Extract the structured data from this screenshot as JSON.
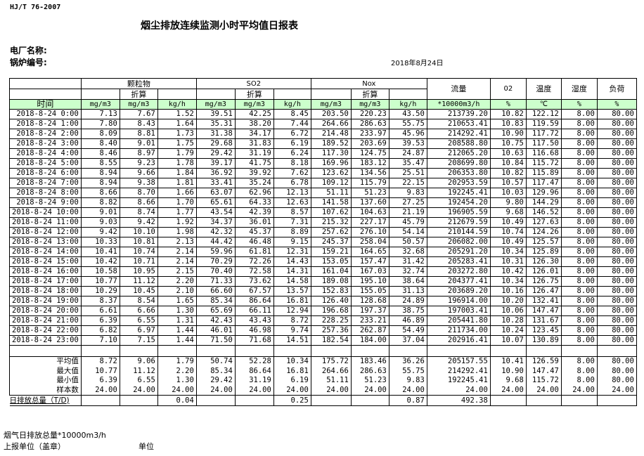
{
  "header": {
    "standard": "HJ/T  76-2007",
    "title": "烟尘排放连续监测小时平均值日报表",
    "plant_label": "电厂名称:",
    "boiler_label": "锅炉编号:",
    "date": "2018年8月24日"
  },
  "table": {
    "groups": {
      "pm": "颗粒物",
      "so2": "SO2",
      "nox": "Nox",
      "flow": "流量",
      "o2": "02",
      "temp": "温度",
      "hum": "湿度",
      "load": "负荷",
      "converted": "折算"
    },
    "units": [
      "时间",
      "mg/m3",
      "mg/m3",
      "kg/h",
      "mg/m3",
      "mg/m3",
      "kg/h",
      "mg/m3",
      "mg/m3",
      "kg/h",
      "*10000m3/h",
      "%",
      "℃",
      "%",
      "%"
    ],
    "rows": [
      [
        "2018-8-24 0:00",
        "7.13",
        "7.67",
        "1.52",
        "39.51",
        "42.25",
        "8.45",
        "203.50",
        "220.23",
        "43.50",
        "213739.20",
        "10.82",
        "122.12",
        "8.00",
        "80.00"
      ],
      [
        "2018-8-24 1:00",
        "7.80",
        "8.43",
        "1.64",
        "35.31",
        "38.20",
        "7.44",
        "264.66",
        "286.63",
        "55.75",
        "210653.41",
        "10.83",
        "119.59",
        "8.00",
        "80.00"
      ],
      [
        "2018-8-24 2:00",
        "8.09",
        "8.81",
        "1.73",
        "31.38",
        "34.17",
        "6.72",
        "214.48",
        "233.97",
        "45.96",
        "214292.41",
        "10.90",
        "117.72",
        "8.00",
        "80.00"
      ],
      [
        "2018-8-24 3:00",
        "8.40",
        "9.01",
        "1.75",
        "29.68",
        "31.83",
        "6.19",
        "189.52",
        "203.69",
        "39.53",
        "208588.80",
        "10.75",
        "117.50",
        "8.00",
        "80.00"
      ],
      [
        "2018-8-24 4:00",
        "8.46",
        "8.97",
        "1.79",
        "29.42",
        "31.19",
        "6.24",
        "117.30",
        "124.75",
        "24.87",
        "212065.20",
        "10.63",
        "116.68",
        "8.00",
        "80.00"
      ],
      [
        "2018-8-24 5:00",
        "8.55",
        "9.23",
        "1.78",
        "39.17",
        "41.75",
        "8.18",
        "169.96",
        "183.12",
        "35.47",
        "208699.80",
        "10.84",
        "115.72",
        "8.00",
        "80.00"
      ],
      [
        "2018-8-24 6:00",
        "8.94",
        "9.66",
        "1.84",
        "36.92",
        "39.92",
        "7.62",
        "123.62",
        "134.56",
        "25.51",
        "206353.80",
        "10.82",
        "115.89",
        "8.00",
        "80.00"
      ],
      [
        "2018-8-24 7:00",
        "8.94",
        "9.38",
        "1.81",
        "33.41",
        "35.24",
        "6.78",
        "109.12",
        "115.79",
        "22.15",
        "202953.59",
        "10.57",
        "117.47",
        "8.00",
        "80.00"
      ],
      [
        "2018-8-24 8:00",
        "8.66",
        "8.70",
        "1.66",
        "63.07",
        "62.96",
        "12.13",
        "51.11",
        "51.23",
        "9.83",
        "192245.41",
        "10.03",
        "129.96",
        "8.00",
        "80.00"
      ],
      [
        "2018-8-24 9:00",
        "8.82",
        "8.66",
        "1.70",
        "65.61",
        "64.33",
        "12.63",
        "141.58",
        "137.60",
        "27.25",
        "192454.20",
        "9.80",
        "144.29",
        "8.00",
        "80.00"
      ],
      [
        "2018-8-24 10:00",
        "9.01",
        "8.74",
        "1.77",
        "43.54",
        "42.39",
        "8.57",
        "107.62",
        "104.63",
        "21.19",
        "196905.59",
        "9.68",
        "146.52",
        "8.00",
        "80.00"
      ],
      [
        "2018-8-24 11:00",
        "9.03",
        "9.42",
        "1.92",
        "34.37",
        "36.01",
        "7.31",
        "215.32",
        "227.17",
        "45.79",
        "212679.59",
        "10.49",
        "127.63",
        "8.00",
        "80.00"
      ],
      [
        "2018-8-24 12:00",
        "9.42",
        "10.10",
        "1.98",
        "42.32",
        "45.37",
        "8.89",
        "257.62",
        "276.10",
        "54.14",
        "210144.59",
        "10.74",
        "124.26",
        "8.00",
        "80.00"
      ],
      [
        "2018-8-24 13:00",
        "10.33",
        "10.81",
        "2.13",
        "44.42",
        "46.48",
        "9.15",
        "245.37",
        "258.04",
        "50.57",
        "206082.00",
        "10.49",
        "125.57",
        "8.00",
        "80.00"
      ],
      [
        "2018-8-24 14:00",
        "10.41",
        "10.74",
        "2.14",
        "59.96",
        "61.81",
        "12.31",
        "159.21",
        "164.65",
        "32.68",
        "205291.20",
        "10.34",
        "125.89",
        "8.00",
        "80.00"
      ],
      [
        "2018-8-24 15:00",
        "10.42",
        "10.71",
        "2.14",
        "70.29",
        "72.26",
        "14.43",
        "153.05",
        "157.47",
        "31.42",
        "205283.41",
        "10.31",
        "126.30",
        "8.00",
        "80.00"
      ],
      [
        "2018-8-24 16:00",
        "10.58",
        "10.95",
        "2.15",
        "70.40",
        "72.58",
        "14.31",
        "161.04",
        "167.03",
        "32.74",
        "203272.80",
        "10.42",
        "126.01",
        "8.00",
        "80.00"
      ],
      [
        "2018-8-24 17:00",
        "10.77",
        "11.12",
        "2.20",
        "71.33",
        "73.62",
        "14.58",
        "189.08",
        "195.10",
        "38.64",
        "204377.41",
        "10.34",
        "126.75",
        "8.00",
        "80.00"
      ],
      [
        "2018-8-24 18:00",
        "10.29",
        "10.45",
        "2.10",
        "66.60",
        "67.57",
        "13.57",
        "152.83",
        "155.05",
        "31.13",
        "203689.20",
        "10.16",
        "126.47",
        "8.00",
        "80.00"
      ],
      [
        "2018-8-24 19:00",
        "8.37",
        "8.54",
        "1.65",
        "85.34",
        "86.64",
        "16.81",
        "126.40",
        "128.68",
        "24.89",
        "196914.00",
        "10.20",
        "132.41",
        "8.00",
        "80.00"
      ],
      [
        "2018-8-24 20:00",
        "6.61",
        "6.66",
        "1.30",
        "65.69",
        "66.11",
        "12.94",
        "196.68",
        "197.37",
        "38.75",
        "197003.41",
        "10.06",
        "147.47",
        "8.00",
        "80.00"
      ],
      [
        "2018-8-24 21:00",
        "6.39",
        "6.55",
        "1.31",
        "42.43",
        "43.43",
        "8.72",
        "228.25",
        "233.21",
        "46.89",
        "205441.80",
        "10.28",
        "131.67",
        "8.00",
        "80.00"
      ],
      [
        "2018-8-24 22:00",
        "6.82",
        "6.97",
        "1.44",
        "46.01",
        "46.98",
        "9.74",
        "257.36",
        "262.87",
        "54.49",
        "211734.00",
        "10.24",
        "123.45",
        "8.00",
        "80.00"
      ],
      [
        "2018-8-24 23:00",
        "7.10",
        "7.15",
        "1.44",
        "71.50",
        "71.68",
        "14.51",
        "182.54",
        "184.00",
        "37.04",
        "202916.41",
        "10.07",
        "130.89",
        "8.00",
        "80.00"
      ]
    ],
    "stats": [
      [
        "平均值",
        "8.72",
        "9.06",
        "1.79",
        "50.74",
        "52.28",
        "10.34",
        "175.72",
        "183.46",
        "36.26",
        "205157.55",
        "10.41",
        "126.59",
        "8.00",
        "80.00"
      ],
      [
        "最大值",
        "10.77",
        "11.12",
        "2.20",
        "85.34",
        "86.64",
        "16.81",
        "264.66",
        "286.63",
        "55.75",
        "214292.41",
        "10.90",
        "147.47",
        "8.00",
        "80.00"
      ],
      [
        "最小值",
        "6.39",
        "6.55",
        "1.30",
        "29.42",
        "31.19",
        "6.19",
        "51.11",
        "51.23",
        "9.83",
        "192245.41",
        "9.68",
        "115.72",
        "8.00",
        "80.00"
      ],
      [
        "样本数",
        "24.00",
        "24.00",
        "24.00",
        "24.00",
        "24.00",
        "24.00",
        "24.00",
        "24.00",
        "24.00",
        "24.00",
        "24.00",
        "24.00",
        "24.00",
        "24.00"
      ]
    ],
    "total": [
      "日排放总量（T/D)",
      "",
      "",
      "0.04",
      "",
      "",
      "0.25",
      "",
      "",
      "0.87",
      "492.38",
      "",
      "",
      "",
      ""
    ]
  },
  "footer": {
    "flue_gas": "烟气日排放总量*10000m3/h",
    "reporting_unit": "上报单位（盖章）",
    "unit": "单位"
  },
  "colors": {
    "unit_row_bg": "#ccffcc"
  }
}
